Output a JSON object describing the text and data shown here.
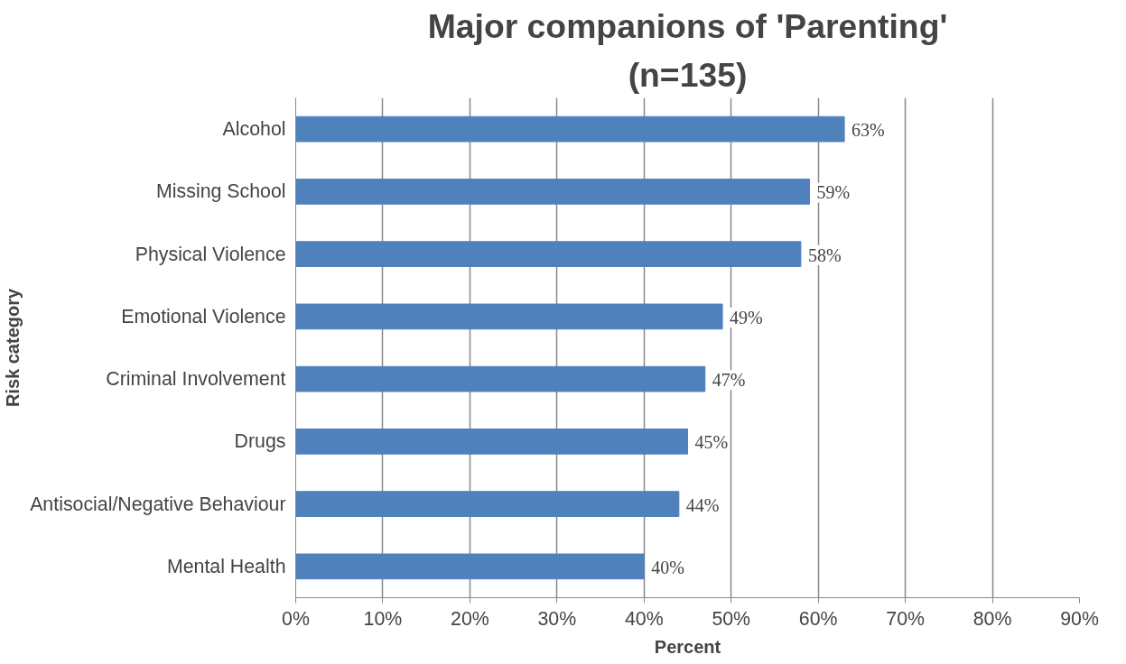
{
  "chart_data": {
    "type": "bar",
    "orientation": "horizontal",
    "title": "Major companions of 'Parenting'",
    "subtitle": "(n=135)",
    "xlabel": "Percent",
    "ylabel": "Risk category",
    "categories": [
      "Alcohol",
      "Missing School",
      "Physical Violence",
      "Emotional Violence",
      "Criminal Involvement",
      "Drugs",
      "Antisocial/Negative Behaviour",
      "Mental Health"
    ],
    "values": [
      63,
      59,
      58,
      49,
      47,
      45,
      44,
      40
    ],
    "value_labels": [
      "63%",
      "59%",
      "58%",
      "49%",
      "47%",
      "45%",
      "44%",
      "40%"
    ],
    "color": "#4f81bd",
    "xlim": [
      0,
      90
    ],
    "xticks": [
      {
        "value": 0,
        "label": "0%"
      },
      {
        "value": 10,
        "label": "10%"
      },
      {
        "value": 20,
        "label": "20%"
      },
      {
        "value": 30,
        "label": "30%"
      },
      {
        "value": 40,
        "label": "40%"
      },
      {
        "value": 50,
        "label": "50%"
      },
      {
        "value": 60,
        "label": "60%"
      },
      {
        "value": 70,
        "label": "70%"
      },
      {
        "value": 80,
        "label": "80%"
      },
      {
        "value": 90,
        "label": "90%"
      }
    ],
    "grid": "x"
  }
}
